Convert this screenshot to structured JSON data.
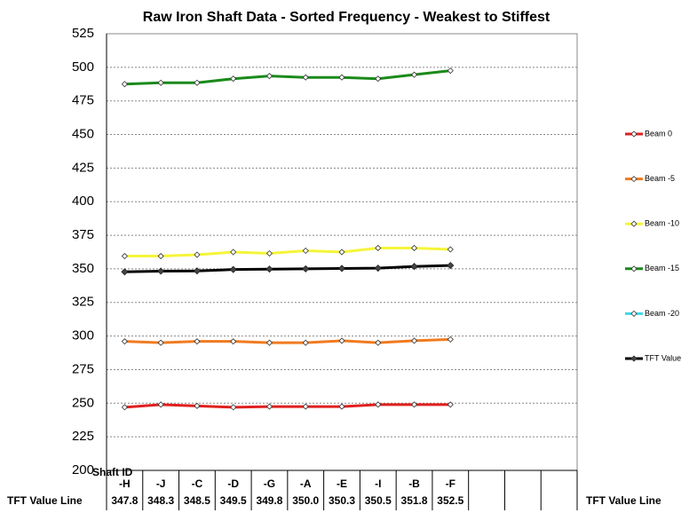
{
  "chart_data": {
    "type": "line",
    "title": "Raw Iron Shaft Data - Sorted Frequency  - Weakest to Stiffest",
    "x_label": "Shaft ID",
    "categories": [
      "-H",
      "-J",
      "-C",
      "-D",
      "-G",
      "-A",
      "-E",
      "-I",
      "-B",
      "-F",
      null,
      null,
      null
    ],
    "ylim": [
      200,
      525
    ],
    "yticks": [
      200,
      225,
      250,
      275,
      300,
      325,
      350,
      375,
      400,
      425,
      450,
      475,
      500,
      525
    ],
    "grid": true,
    "legend": "right",
    "series": [
      {
        "name": "Beam 0",
        "color": "#e02020",
        "values": [
          247,
          249,
          248,
          247,
          247.5,
          247.5,
          247.5,
          249,
          249,
          249,
          null,
          null,
          null
        ]
      },
      {
        "name": "Beam -5",
        "color": "#f07b20",
        "values": [
          296,
          295,
          296,
          296,
          295,
          295,
          296.5,
          295,
          296.5,
          297.5,
          null,
          null,
          null
        ]
      },
      {
        "name": "Beam -10",
        "color": "#f5f53a",
        "values": [
          359.5,
          359.5,
          360.5,
          362.5,
          361.5,
          363.5,
          362.5,
          365.5,
          365.5,
          364.5,
          null,
          null,
          null
        ]
      },
      {
        "name": "Beam -15",
        "color": "#1a8a1a",
        "values": [
          487.5,
          488.5,
          488.5,
          491.5,
          493.5,
          492.5,
          492.5,
          491.5,
          494.5,
          497.5,
          null,
          null,
          null
        ]
      },
      {
        "name": "Beam -20",
        "color": "#40d8e8",
        "values": [
          null,
          null,
          null,
          null,
          null,
          null,
          null,
          null,
          null,
          null,
          null,
          null,
          null
        ]
      },
      {
        "name": "TFT Value",
        "color": "#000000",
        "values": [
          347.8,
          348.3,
          348.5,
          349.5,
          349.8,
          350,
          350.3,
          350.5,
          351.8,
          352.5,
          null,
          null,
          null
        ],
        "value_labels": [
          "347.8",
          "348.3",
          "348.5",
          "349.5",
          "349.8",
          "350.0",
          "350.3",
          "350.5",
          "351.8",
          "352.5",
          null,
          null,
          null
        ]
      }
    ],
    "table_row_label": "TFT Value Line"
  }
}
